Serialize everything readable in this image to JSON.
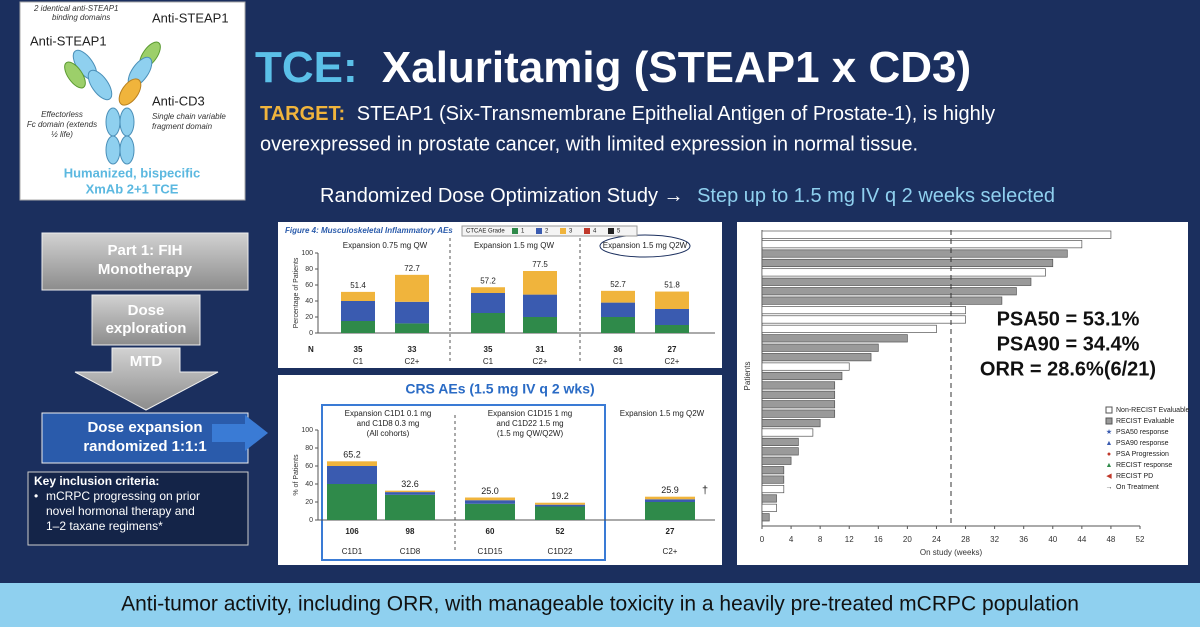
{
  "antibody_panel": {
    "note_top": [
      "2 identical anti-STEAP1",
      "binding domains"
    ],
    "label_left": "Anti-STEAP1",
    "label_right": "Anti-STEAP1",
    "label_cd3": "Anti-CD3",
    "fc_note": [
      "Effectorless",
      "Fc domain (extends",
      "½ life)"
    ],
    "scfv_note": [
      "Single chain variable",
      "fragment domain"
    ],
    "caption": [
      "Humanized, bispecific",
      "XmAb 2+1 TCE"
    ]
  },
  "header": {
    "title_prefix": "TCE:",
    "title": "Xaluritamig (STEAP1 x CD3)",
    "target_label": "TARGET:",
    "target_text": [
      "STEAP1 (Six-Transmembrane Epithelial Antigen of Prostate-1), is highly",
      "overexpressed in prostate cancer, with limited expression in normal tissue."
    ]
  },
  "study_line": {
    "text": "Randomized Dose Optimization Study →",
    "highlight": "Step up to 1.5 mg IV q 2 weeks selected"
  },
  "flow": {
    "part1": [
      "Part 1: FIH",
      "Monotherapy"
    ],
    "dose_exploration": [
      "Dose",
      "exploration"
    ],
    "mtd": "MTD",
    "dose_expansion": [
      "Dose expansion",
      "randomized 1:1:1"
    ],
    "criteria_title": "Key inclusion criteria:",
    "criteria": [
      "mCRPC progressing on prior",
      "novel hormonal therapy and",
      "1–2 taxane regimens*"
    ]
  },
  "charts": [
    {
      "type": "stacked_bar",
      "title": "Figure 4: Musculoskeletal Inflammatory AEs",
      "legend_title": "CTCAE Grade",
      "y_label": "Percentage of Patients",
      "ylim": [
        0,
        100
      ],
      "yticks": [
        0,
        20,
        40,
        60,
        80,
        100
      ],
      "groups": [
        [
          "Expansion 0.75 mg QW"
        ],
        [
          "Expansion 1.5 mg QW"
        ],
        [
          "Expansion 1.5 mg Q2W"
        ]
      ],
      "categories": [
        "C1",
        "C2+",
        "C1",
        "C2+",
        "C1",
        "C2+"
      ],
      "n_label": "N",
      "n": [
        35,
        33,
        35,
        31,
        36,
        27
      ],
      "totals": [
        51.4,
        72.7,
        57.2,
        77.5,
        52.7,
        51.8
      ],
      "series": [
        {
          "name": "1",
          "color": "#2f8a4a",
          "values": [
            15,
            12,
            25,
            20,
            20,
            10
          ]
        },
        {
          "name": "2",
          "color": "#3a5bb0",
          "values": [
            25,
            27,
            25,
            28,
            18,
            20
          ]
        },
        {
          "name": "3",
          "color": "#f0b43c",
          "values": [
            11.4,
            33.7,
            7.2,
            29.5,
            14.7,
            21.8
          ]
        },
        {
          "name": "4",
          "color": "#c0392b",
          "values": [
            0,
            0,
            0,
            0,
            0,
            0
          ]
        },
        {
          "name": "5",
          "color": "#222222",
          "values": [
            0,
            0,
            0,
            0,
            0,
            0
          ]
        }
      ]
    },
    {
      "type": "stacked_bar",
      "title": "CRS AEs (1.5 mg IV q 2 wks)",
      "y_label": "% of Patients",
      "ylim": [
        0,
        100
      ],
      "yticks": [
        0,
        20,
        40,
        60,
        80,
        100
      ],
      "groups": [
        [
          "Expansion C1D1 0.1 mg",
          "and C1D8 0.3 mg",
          "(All cohorts)"
        ],
        [
          "Expansion C1D15 1 mg",
          "and C1D22 1.5 mg",
          "(1.5 mg QW/Q2W)"
        ],
        [
          "Expansion 1.5 mg Q2W"
        ]
      ],
      "categories": [
        "C1D1",
        "C1D8",
        "C1D15",
        "C1D22",
        "C2+"
      ],
      "n": [
        106,
        98,
        60,
        52,
        27
      ],
      "totals": [
        65.2,
        32.6,
        25,
        19.2,
        25.9
      ],
      "value_labels": [
        "65.2",
        "32.6",
        "25.0",
        "19.2",
        "25.9"
      ],
      "footnote_mark": "†",
      "series": [
        {
          "color": "#2f8a4a",
          "values": [
            40,
            28,
            18,
            15,
            20
          ]
        },
        {
          "color": "#3a5bb0",
          "values": [
            20,
            3,
            4,
            2,
            3
          ]
        },
        {
          "color": "#f0b43c",
          "values": [
            5.2,
            1.6,
            3,
            2.2,
            2.9
          ]
        }
      ]
    },
    {
      "type": "swimmer",
      "y_label": "Patients",
      "x_label": "On study (weeks)",
      "xlim": [
        0,
        52
      ],
      "xticks": [
        0,
        4,
        8,
        12,
        16,
        20,
        24,
        28,
        32,
        36,
        40,
        44,
        48,
        52
      ],
      "reference_x": 26,
      "series": [
        {
          "name": "Non-RECIST Evaluable",
          "color": "#ffffff",
          "values": [
            48,
            44,
            null,
            null,
            39,
            null,
            null,
            null,
            28,
            28,
            24,
            null,
            null,
            null,
            12,
            null,
            null,
            null,
            null,
            null,
            null,
            7,
            null,
            null,
            null,
            null,
            null,
            3,
            null,
            2,
            null
          ]
        },
        {
          "name": "RECIST Evaluable",
          "color": "#9a9a9a",
          "values": [
            null,
            null,
            42,
            40,
            null,
            37,
            35,
            33,
            null,
            null,
            null,
            20,
            16,
            15,
            null,
            11,
            10,
            10,
            10,
            10,
            8,
            null,
            5,
            5,
            4,
            3,
            3,
            null,
            2,
            null,
            1
          ]
        }
      ],
      "marker_legend": [
        "PSA50 response",
        "PSA90 response",
        "PSA Progression",
        "RECIST response",
        "RECIST PD",
        "On Treatment"
      ],
      "stats": [
        "PSA50 = 53.1%",
        "PSA90 = 34.4%",
        "ORR = 28.6%(6/21)"
      ]
    }
  ],
  "footer": "Anti-tumor activity, including ORR, with manageable toxicity in a heavily pre-treated mCRPC population"
}
